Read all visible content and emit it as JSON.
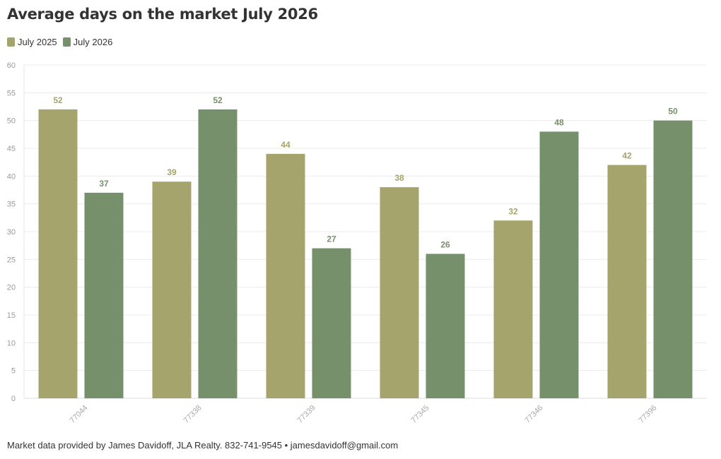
{
  "title": "Average days on the market July 2026",
  "legend": [
    {
      "label": "July 2025",
      "color": "#a6a46d"
    },
    {
      "label": "July 2026",
      "color": "#76906c"
    }
  ],
  "footer": {
    "text": "Market data provided by James Davidoff, JLA Realty. 832-741-9545 • jamesdavidoff@gmail.com"
  },
  "chart_data": {
    "type": "bar",
    "categories": [
      "77044",
      "77338",
      "77339",
      "77345",
      "77346",
      "77396"
    ],
    "series": [
      {
        "name": "July 2025",
        "values": [
          52,
          39,
          44,
          38,
          32,
          42
        ],
        "color": "#a6a46d"
      },
      {
        "name": "July 2026",
        "values": [
          37,
          52,
          27,
          26,
          48,
          50
        ],
        "color": "#76906c"
      }
    ],
    "title": "Average days on the market July 2026",
    "xlabel": "",
    "ylabel": "",
    "ylim": [
      0,
      60
    ],
    "yticks": [
      0,
      5,
      10,
      15,
      20,
      25,
      30,
      35,
      40,
      45,
      50,
      55,
      60
    ],
    "grid": true,
    "legend_position": "top-left",
    "data_labels": true
  }
}
